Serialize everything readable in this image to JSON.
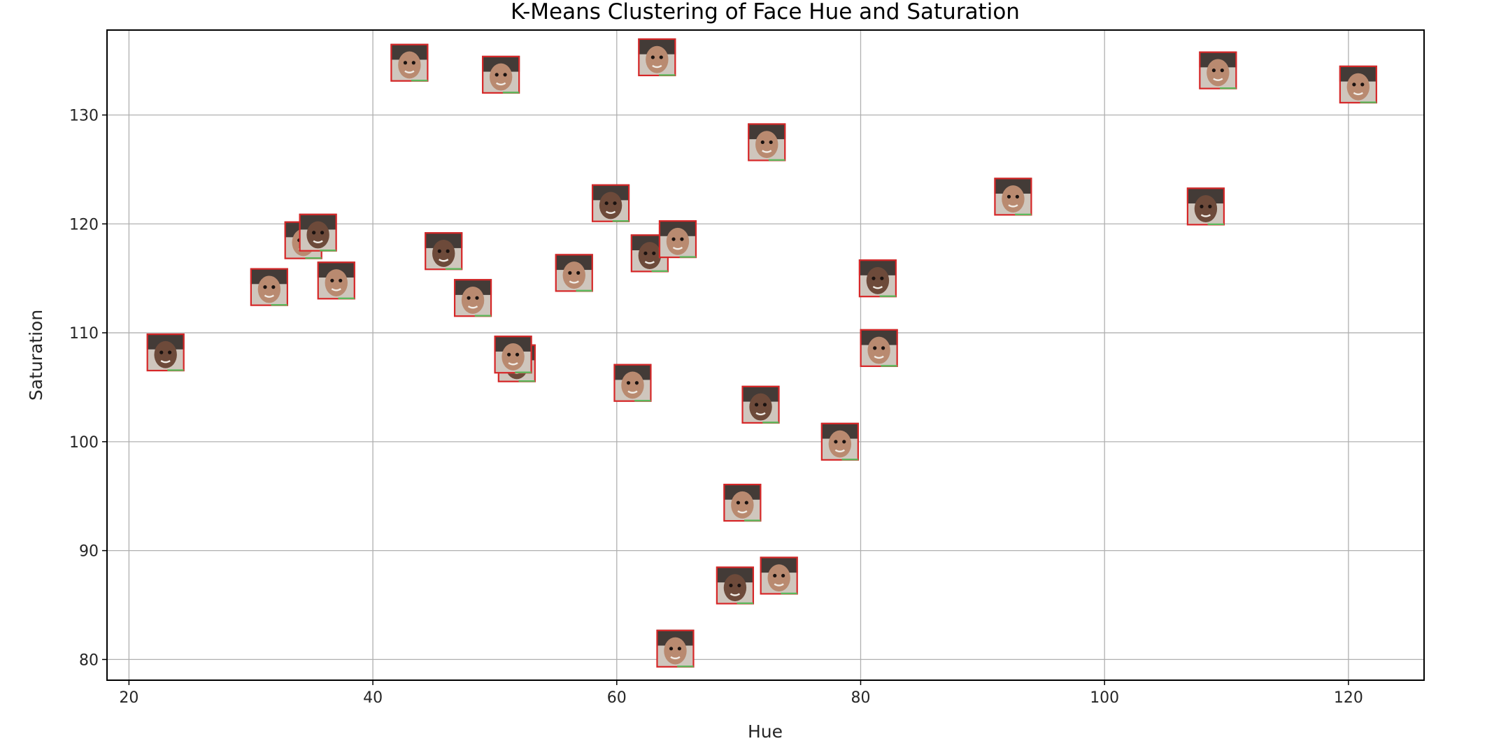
{
  "chart_data": {
    "type": "scatter",
    "title": "K-Means Clustering of Face Hue and Saturation",
    "xlabel": "Hue",
    "ylabel": "Saturation",
    "xlim": [
      18.2,
      126.2
    ],
    "ylim": [
      78.1,
      137.8
    ],
    "xticks": [
      20,
      40,
      60,
      80,
      100,
      120
    ],
    "yticks": [
      80,
      90,
      100,
      110,
      120,
      130
    ],
    "grid": true,
    "marker": "face-thumbnail",
    "colors": {
      "frame": "#d62728",
      "frame_alt": "#5cb85c",
      "skin": "#b98a70",
      "skin_dark": "#6d4a3a",
      "hair": "#2a2220",
      "grid": "#b0b0b0"
    },
    "points": [
      {
        "x": 23.0,
        "y": 108.2
      },
      {
        "x": 31.5,
        "y": 114.2
      },
      {
        "x": 34.3,
        "y": 118.5
      },
      {
        "x": 35.5,
        "y": 119.2
      },
      {
        "x": 37.0,
        "y": 114.8
      },
      {
        "x": 43.0,
        "y": 134.8
      },
      {
        "x": 45.8,
        "y": 117.5
      },
      {
        "x": 48.2,
        "y": 113.2
      },
      {
        "x": 50.5,
        "y": 133.7
      },
      {
        "x": 51.8,
        "y": 107.2
      },
      {
        "x": 51.5,
        "y": 108.0
      },
      {
        "x": 56.5,
        "y": 115.5
      },
      {
        "x": 59.5,
        "y": 121.9
      },
      {
        "x": 61.3,
        "y": 105.4
      },
      {
        "x": 63.3,
        "y": 135.3
      },
      {
        "x": 62.7,
        "y": 117.3
      },
      {
        "x": 65.0,
        "y": 118.6
      },
      {
        "x": 64.8,
        "y": 81.0
      },
      {
        "x": 69.7,
        "y": 86.8
      },
      {
        "x": 73.3,
        "y": 87.7
      },
      {
        "x": 70.3,
        "y": 94.4
      },
      {
        "x": 71.8,
        "y": 103.4
      },
      {
        "x": 72.3,
        "y": 127.5
      },
      {
        "x": 78.3,
        "y": 100.0
      },
      {
        "x": 81.4,
        "y": 115.0
      },
      {
        "x": 81.5,
        "y": 108.6
      },
      {
        "x": 92.5,
        "y": 122.5
      },
      {
        "x": 108.3,
        "y": 121.6
      },
      {
        "x": 109.3,
        "y": 134.1
      },
      {
        "x": 120.8,
        "y": 132.8
      }
    ]
  }
}
